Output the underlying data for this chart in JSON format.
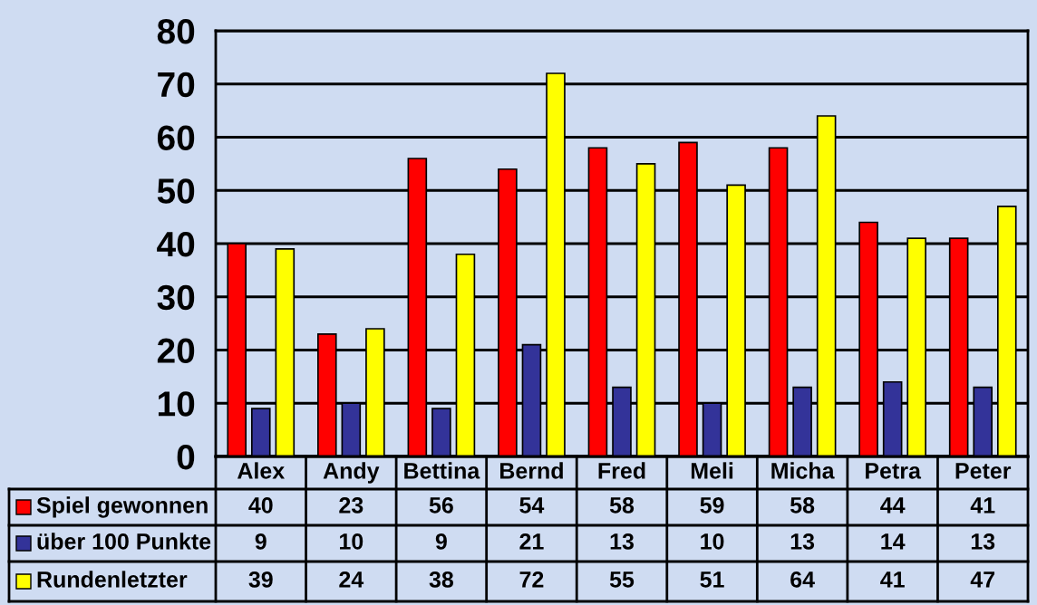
{
  "chart_data": {
    "type": "bar",
    "categories": [
      "Alex",
      "Andy",
      "Bettina",
      "Bernd",
      "Fred",
      "Meli",
      "Micha",
      "Petra",
      "Peter"
    ],
    "series": [
      {
        "name": "Spiel gewonnen",
        "color": "#ff0000",
        "values": [
          40,
          23,
          56,
          54,
          58,
          59,
          58,
          44,
          41
        ]
      },
      {
        "name": "über 100 Punkte",
        "color": "#333399",
        "values": [
          9,
          10,
          9,
          21,
          13,
          10,
          13,
          14,
          13
        ]
      },
      {
        "name": "Rundenletzter",
        "color": "#ffff00",
        "values": [
          39,
          24,
          38,
          72,
          55,
          51,
          64,
          41,
          47
        ]
      }
    ],
    "ylim": [
      0,
      80
    ],
    "yticks": [
      0,
      10,
      20,
      30,
      40,
      50,
      60,
      70,
      80
    ],
    "grid": "y",
    "legend": "bottom",
    "data_labels": true
  }
}
